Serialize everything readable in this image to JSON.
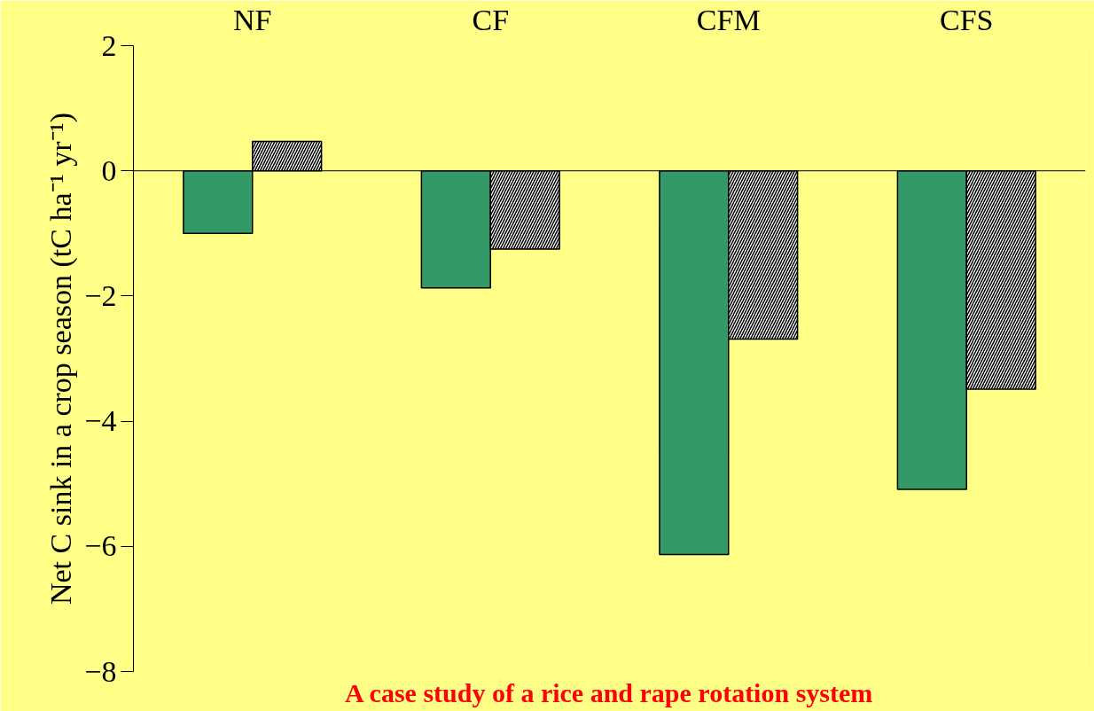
{
  "chart_data": {
    "type": "bar",
    "categories": [
      "NF",
      "CF",
      "CFM",
      "CFS"
    ],
    "ylabel": "Net C sink in a crop season (tC ha⁻¹ yr⁻¹)",
    "ylim": [
      -8,
      2
    ],
    "yticks": [
      -8,
      -6,
      -4,
      -2,
      0,
      2
    ],
    "series": [
      {
        "color": "#339966",
        "values": [
          -1.0,
          -1.87,
          -6.13,
          -5.09
        ]
      },
      {
        "color": "#ffffff",
        "values": [
          0.47,
          -1.25,
          -2.69,
          -3.49
        ]
      }
    ],
    "annotations": [
      "A case study of a rice and rape rotation system"
    ]
  }
}
